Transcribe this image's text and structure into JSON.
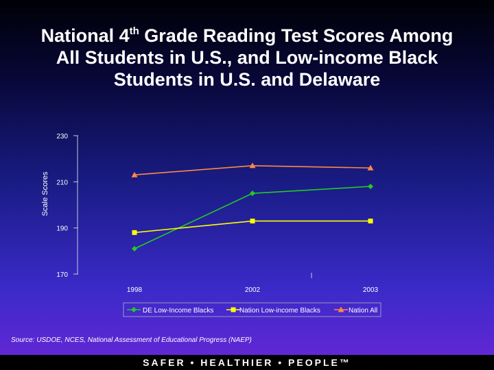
{
  "slide": {
    "title_main": "National 4",
    "title_sup": "th",
    "title_rest": " Grade Reading Test Scores Among All Students in U.S., and Low-income Black Students in U.S. and Delaware",
    "source": "Source: USDOE, NCES, National Assessment of Educational Progress (NAEP)",
    "footer": "SAFER • HEALTHIER • PEOPLE™"
  },
  "chart_data": {
    "type": "line",
    "title": "National 4th Grade Reading Test Scores Among All Students in U.S., and Low-income Black Students in U.S. and Delaware",
    "xlabel": "",
    "ylabel": "Scale Scores",
    "categories": [
      "1998",
      "2002",
      "2003"
    ],
    "yticks": [
      "230",
      "210",
      "190",
      "170"
    ],
    "ylim": [
      170,
      230
    ],
    "grid": false,
    "legend_position": "bottom",
    "series": [
      {
        "name": "DE Low-Income Blacks",
        "values": [
          181,
          205,
          208
        ],
        "color": "#22cc22",
        "marker": "diamond"
      },
      {
        "name": "Nation Low-income Blacks",
        "values": [
          188,
          193,
          193
        ],
        "color": "#ffff00",
        "marker": "square"
      },
      {
        "name": "Nation All",
        "values": [
          213,
          217,
          216
        ],
        "color": "#ff8844",
        "marker": "triangle"
      }
    ]
  }
}
